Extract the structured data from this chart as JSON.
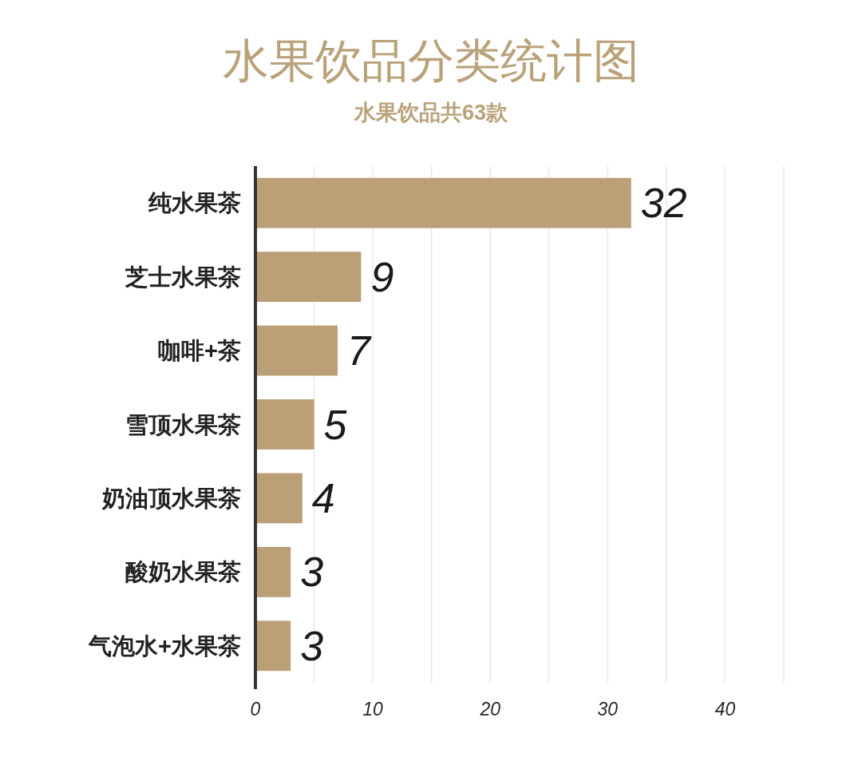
{
  "chart_data": {
    "type": "bar",
    "orientation": "horizontal",
    "title": "水果饮品分类统计图",
    "subtitle": "水果饮品共63款",
    "categories": [
      "纯水果茶",
      "芝士水果茶",
      "咖啡+茶",
      "雪顶水果茶",
      "奶油顶水果茶",
      "酸奶水果茶",
      "气泡水+水果茶"
    ],
    "values": [
      32,
      9,
      7,
      5,
      4,
      3,
      3
    ],
    "color": "#bb9f76",
    "xlim": [
      0,
      45
    ],
    "xticks": [
      0,
      {
        "value": 5,
        "label": null
      },
      10,
      {
        "value": 15,
        "label": null
      },
      20,
      {
        "value": 25,
        "label": null
      },
      30,
      {
        "value": 35,
        "label": null
      },
      40,
      {
        "value": 45,
        "label": null
      }
    ],
    "grid": "x",
    "data_labels": true
  }
}
